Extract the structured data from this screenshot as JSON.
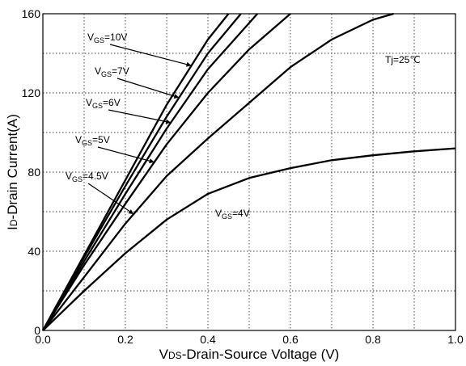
{
  "chart_data": {
    "type": "line",
    "title": "",
    "xlabel": {
      "prefix": "V",
      "sub": "DS",
      "rest": "-Drain-Source Voltage (V)"
    },
    "ylabel": {
      "prefix": "I",
      "sub": "D",
      "rest": "-Drain Current(A)"
    },
    "xlim": [
      0,
      1.0
    ],
    "ylim": [
      0,
      160
    ],
    "xticks": [
      "0.0",
      "0.2",
      "0.4",
      "0.6",
      "0.8",
      "1.0"
    ],
    "xtick_values": [
      0,
      0.2,
      0.4,
      0.6,
      0.8,
      1.0
    ],
    "yticks": [
      "0",
      "40",
      "80",
      "120",
      "160"
    ],
    "ytick_values": [
      0,
      40,
      80,
      120,
      160
    ],
    "grid": true,
    "annotation": "Tj=25℃",
    "series": [
      {
        "name": "VGS=10V",
        "label": {
          "prefix": "V",
          "sub": "GS",
          "rest": "=10V"
        },
        "x": [
          0,
          0.1,
          0.2,
          0.3,
          0.4,
          0.45
        ],
        "y": [
          0,
          38,
          76,
          114,
          147,
          160
        ]
      },
      {
        "name": "VGS=7V",
        "label": {
          "prefix": "V",
          "sub": "GS",
          "rest": "=7V"
        },
        "x": [
          0,
          0.1,
          0.2,
          0.3,
          0.4,
          0.48
        ],
        "y": [
          0,
          37,
          73,
          108,
          140,
          160
        ]
      },
      {
        "name": "VGS=6V",
        "label": {
          "prefix": "V",
          "sub": "GS",
          "rest": "=6V"
        },
        "x": [
          0,
          0.1,
          0.2,
          0.3,
          0.4,
          0.52
        ],
        "y": [
          0,
          35,
          69,
          102,
          132,
          160
        ]
      },
      {
        "name": "VGS=5V",
        "label": {
          "prefix": "V",
          "sub": "GS",
          "rest": "=5V"
        },
        "x": [
          0,
          0.1,
          0.2,
          0.3,
          0.4,
          0.5,
          0.6
        ],
        "y": [
          0,
          33,
          64,
          94,
          120,
          142,
          160
        ]
      },
      {
        "name": "VGS=4.5V",
        "label": {
          "prefix": "V",
          "sub": "GS",
          "rest": "=4.5V"
        },
        "x": [
          0,
          0.1,
          0.2,
          0.3,
          0.4,
          0.5,
          0.6,
          0.7,
          0.8,
          0.85
        ],
        "y": [
          0,
          27,
          54,
          78,
          97,
          115,
          133,
          147,
          157,
          160
        ]
      },
      {
        "name": "VGS=4V",
        "label": {
          "prefix": "V",
          "sub": "GS",
          "rest": "=4V"
        },
        "x": [
          0,
          0.1,
          0.2,
          0.3,
          0.4,
          0.5,
          0.6,
          0.7,
          0.8,
          0.9,
          1.0
        ],
        "y": [
          0,
          20,
          39,
          56,
          69,
          77,
          82,
          86,
          88.5,
          90.5,
          92
        ]
      }
    ]
  }
}
